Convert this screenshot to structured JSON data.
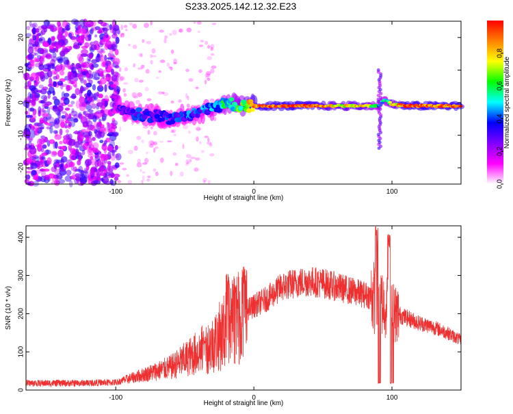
{
  "title": "S233.2025.142.12.32.E23",
  "chart_data": [
    {
      "type": "heatmap",
      "xlabel": "Height of straight line (km)",
      "ylabel": "Frequency (Hz)",
      "xlim": [
        -165,
        150
      ],
      "ylim": [
        -25,
        25
      ],
      "xticks": [
        -100,
        0,
        100
      ],
      "yticks": [
        20,
        10,
        0,
        -10,
        -20
      ],
      "colorbar": {
        "label": "Normalized spectral amplitude",
        "range": [
          0,
          1
        ],
        "ticks": [
          0.0,
          0.2,
          0.4,
          0.6,
          0.8
        ],
        "colormap": [
          "#ffffff",
          "#ff00ff",
          "#8000ff",
          "#0000ff",
          "#00ffff",
          "#00ff00",
          "#ffff00",
          "#ff8000",
          "#ff0000"
        ]
      },
      "ridge": {
        "x": [
          -100,
          -90,
          -80,
          -70,
          -60,
          -50,
          -40,
          -30,
          -20,
          -10,
          0,
          20,
          40,
          60,
          80,
          90,
          95,
          100,
          110,
          120,
          150
        ],
        "freq": [
          -1,
          -3,
          -4,
          -4,
          -5,
          -4,
          -3,
          -2,
          0,
          -1,
          -1,
          -1,
          -1,
          -1,
          -1,
          -1,
          1,
          -0.5,
          -1,
          -1,
          -1
        ],
        "amplitude": [
          0.25,
          0.3,
          0.3,
          0.3,
          0.3,
          0.35,
          0.35,
          0.4,
          0.55,
          0.6,
          0.85,
          0.9,
          0.9,
          0.75,
          0.8,
          0.5,
          0.5,
          0.75,
          0.9,
          0.9,
          0.9
        ]
      },
      "noise_region": {
        "xmin": -165,
        "xmax": -98,
        "amplitude": [
          0.1,
          0.35
        ]
      }
    },
    {
      "type": "line",
      "xlabel": "Height of straight line (km)",
      "ylabel": "SNR (10 * v/v)",
      "xlim": [
        -165,
        150
      ],
      "ylim": [
        0,
        430
      ],
      "xticks": [
        -100,
        0,
        100
      ],
      "yticks": [
        0,
        100,
        200,
        300,
        400
      ],
      "color": "#ee3030",
      "envelope": {
        "x": [
          -165,
          -130,
          -100,
          -90,
          -80,
          -70,
          -60,
          -50,
          -40,
          -30,
          -20,
          -10,
          0,
          10,
          20,
          30,
          40,
          50,
          60,
          70,
          80,
          90,
          100,
          110,
          120,
          130,
          140,
          150
        ],
        "y": [
          18,
          18,
          20,
          30,
          40,
          50,
          60,
          80,
          100,
          120,
          160,
          200,
          220,
          240,
          270,
          280,
          285,
          280,
          270,
          260,
          250,
          240,
          205,
          190,
          175,
          165,
          150,
          130
        ]
      },
      "spikes": [
        {
          "x": -36,
          "y": 140
        },
        {
          "x": -19,
          "y": 320
        },
        {
          "x": -14,
          "y": 300
        },
        {
          "x": -7,
          "y": 330
        },
        {
          "x": 89,
          "y": 430
        },
        {
          "x": 91,
          "y": 20
        },
        {
          "x": 98,
          "y": 415
        },
        {
          "x": 100,
          "y": 20
        }
      ]
    }
  ]
}
